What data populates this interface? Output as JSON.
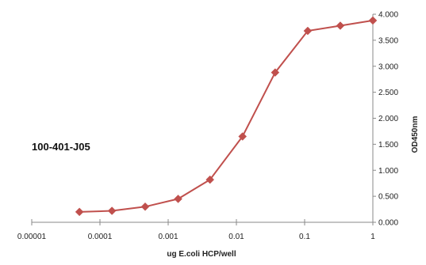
{
  "chart_data": {
    "type": "line",
    "title": "",
    "annotation": "100-401-J05",
    "xlabel": "ug E.coli HCP/well",
    "ylabel": "OD450nm",
    "xscale": "log",
    "xlim": [
      1e-05,
      1
    ],
    "ylim": [
      0,
      4
    ],
    "xticks": [
      1e-05,
      0.0001,
      0.001,
      0.01,
      0.1,
      1
    ],
    "xtick_labels": [
      "0.00001",
      "0.0001",
      "0.001",
      "0.01",
      "0.1",
      "1"
    ],
    "yticks": [
      0,
      0.5,
      1,
      1.5,
      2,
      2.5,
      3,
      3.5,
      4
    ],
    "ytick_labels": [
      "0.000",
      "0.500",
      "1.000",
      "1.500",
      "2.000",
      "2.500",
      "3.000",
      "3.500",
      "4.000"
    ],
    "yaxis_side": "right",
    "grid": false,
    "legend": "none",
    "series": [
      {
        "color": "#C0504D",
        "marker": "diamond",
        "x": [
          5e-05,
          0.00015,
          0.00046,
          0.0014,
          0.0041,
          0.0123,
          0.037,
          0.111,
          0.333,
          1
        ],
        "y": [
          0.2,
          0.22,
          0.3,
          0.45,
          0.82,
          1.65,
          2.88,
          3.68,
          3.78,
          3.88
        ]
      }
    ]
  }
}
